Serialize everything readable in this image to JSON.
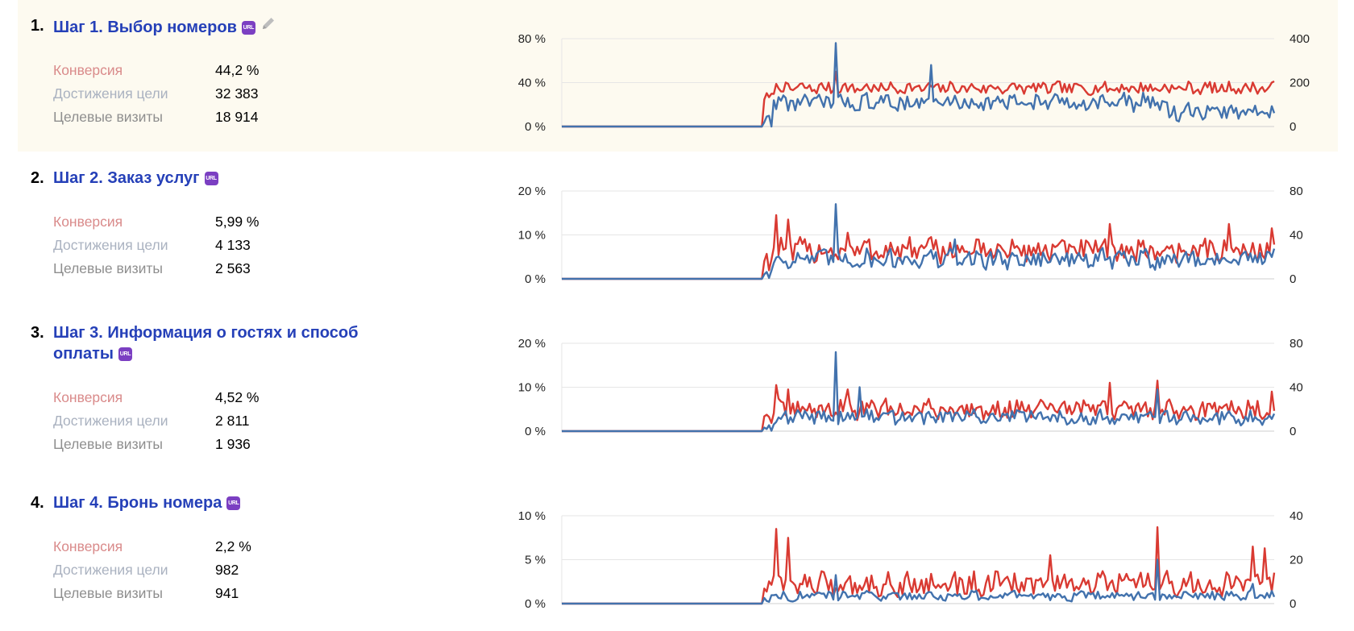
{
  "labels": {
    "conversion": "Конверсия",
    "goal_reaches": "Достижения цели",
    "target_visits": "Целевые визиты",
    "url_badge": "URL"
  },
  "colors": {
    "red_series": "#d93a32",
    "blue_series": "#4272ad",
    "title": "#2540b8",
    "badge": "#7b3fc2"
  },
  "steps": [
    {
      "num": "1.",
      "title": "Шаг 1. Выбор номеров",
      "editable": true,
      "conversion": "44,2 %",
      "goal_reaches": "32 383",
      "target_visits": "18 914"
    },
    {
      "num": "2.",
      "title": "Шаг 2. Заказ услуг",
      "editable": false,
      "conversion": "5,99 %",
      "goal_reaches": "4 133",
      "target_visits": "2 563"
    },
    {
      "num": "3.",
      "title": "Шаг 3. Информация о гостях и способ оплаты",
      "editable": false,
      "conversion": "4,52 %",
      "goal_reaches": "2 811",
      "target_visits": "1 936"
    },
    {
      "num": "4.",
      "title": "Шаг 4. Бронь номера",
      "editable": false,
      "conversion": "2,2 %",
      "goal_reaches": "982",
      "target_visits": "941"
    }
  ],
  "chart_data": [
    {
      "type": "line",
      "left_axis": {
        "ticks": [
          "80 %",
          "40 %",
          "0 %"
        ],
        "range": [
          0,
          80
        ]
      },
      "right_axis": {
        "ticks": [
          "400",
          "200",
          "0"
        ],
        "range": [
          0,
          400
        ]
      },
      "grid": true,
      "n_points": 300,
      "flat_until": 85,
      "series": [
        {
          "axis": "left",
          "color": "red",
          "shape": {
            "level": 35,
            "start": 27,
            "amp": 5,
            "peaks": [
              [
                115,
                50
              ]
            ]
          }
        },
        {
          "axis": "right",
          "color": "blue",
          "shape": {
            "level": 110,
            "start": 35,
            "amp": 35,
            "peaks": [
              [
                115,
                380
              ],
              [
                155,
                280
              ]
            ],
            "late_level": 65,
            "late_from": 255
          }
        }
      ]
    },
    {
      "type": "line",
      "left_axis": {
        "ticks": [
          "20 %",
          "10 %",
          "0 %"
        ],
        "range": [
          0,
          20
        ]
      },
      "right_axis": {
        "ticks": [
          "80",
          "40",
          "0"
        ],
        "range": [
          0,
          80
        ]
      },
      "grid": true,
      "n_points": 300,
      "flat_until": 85,
      "series": [
        {
          "axis": "left",
          "color": "red",
          "shape": {
            "level": 6.5,
            "start": 5,
            "amp": 2.5,
            "peaks": [
              [
                90,
                14.5
              ],
              [
                95,
                13.5
              ],
              [
                120,
                10.5
              ],
              [
                230,
                12.5
              ],
              [
                280,
                12.5
              ],
              [
                298,
                11.5
              ]
            ]
          }
        },
        {
          "axis": "right",
          "color": "blue",
          "shape": {
            "level": 18,
            "start": 7,
            "amp": 8,
            "peaks": [
              [
                115,
                68
              ],
              [
                165,
                36
              ]
            ]
          }
        }
      ]
    },
    {
      "type": "line",
      "left_axis": {
        "ticks": [
          "20 %",
          "10 %",
          "0 %"
        ],
        "range": [
          0,
          20
        ]
      },
      "right_axis": {
        "ticks": [
          "80",
          "40",
          "0"
        ],
        "range": [
          0,
          80
        ]
      },
      "grid": true,
      "n_points": 300,
      "flat_until": 85,
      "series": [
        {
          "axis": "left",
          "color": "red",
          "shape": {
            "level": 5,
            "start": 4,
            "amp": 2,
            "peaks": [
              [
                90,
                10.5
              ],
              [
                95,
                9.5
              ],
              [
                120,
                9.5
              ],
              [
                230,
                11
              ],
              [
                250,
                11.5
              ],
              [
                298,
                9
              ]
            ]
          }
        },
        {
          "axis": "right",
          "color": "blue",
          "shape": {
            "level": 13,
            "start": 5,
            "amp": 6,
            "peaks": [
              [
                115,
                72
              ],
              [
                125,
                40
              ],
              [
                250,
                38
              ]
            ]
          }
        }
      ]
    },
    {
      "type": "line",
      "left_axis": {
        "ticks": [
          "10 %",
          "5 %",
          "0 %"
        ],
        "range": [
          0,
          10
        ]
      },
      "right_axis": {
        "ticks": [
          "40",
          "20",
          "0"
        ],
        "range": [
          0,
          40
        ]
      },
      "grid": true,
      "n_points": 300,
      "flat_until": 85,
      "series": [
        {
          "axis": "left",
          "color": "red",
          "shape": {
            "level": 2.2,
            "start": 2,
            "amp": 1.2,
            "peaks": [
              [
                90,
                8.5
              ],
              [
                95,
                7.5
              ],
              [
                205,
                5.5
              ],
              [
                250,
                8.7
              ],
              [
                290,
                6.5
              ],
              [
                295,
                6.3
              ]
            ]
          }
        },
        {
          "axis": "right",
          "color": "blue",
          "shape": {
            "level": 3.5,
            "start": 3,
            "amp": 2,
            "peaks": [
              [
                115,
                13
              ],
              [
                250,
                20
              ],
              [
                290,
                9
              ]
            ]
          }
        }
      ]
    }
  ]
}
